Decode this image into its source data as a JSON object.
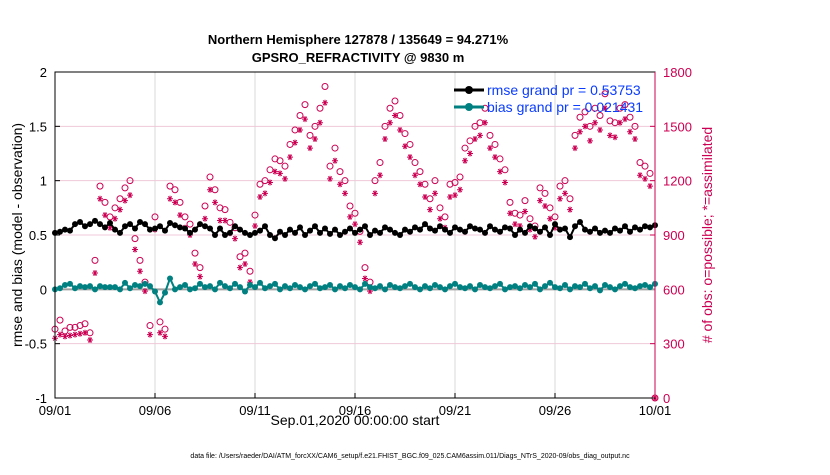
{
  "chart_data": {
    "type": "line",
    "title": "Northern Hemisphere 127878 / 135649 = 94.271%",
    "subtitle": "GPSRO_REFRACTIVITY @ 9830 m",
    "xlabel": "Sep.01,2020 00:00:00 start",
    "ylabel": "rmse and bias (model - observation)",
    "ylabel_right": "# of obs: o=possible; *=assimilated",
    "xlim_days": [
      0,
      30
    ],
    "ylim": [
      -1,
      2
    ],
    "ylim_right": [
      0,
      1800
    ],
    "x_ticks": [
      {
        "day": 0,
        "label": "09/01"
      },
      {
        "day": 5,
        "label": "09/06"
      },
      {
        "day": 10,
        "label": "09/11"
      },
      {
        "day": 15,
        "label": "09/16"
      },
      {
        "day": 20,
        "label": "09/21"
      },
      {
        "day": 25,
        "label": "09/26"
      },
      {
        "day": 30,
        "label": "10/01"
      }
    ],
    "y_ticks": [
      "-1",
      "-0.5",
      "0",
      "0.5",
      "1",
      "1.5",
      "2"
    ],
    "y_ticks_right": [
      "0",
      "300",
      "600",
      "900",
      "1200",
      "1500",
      "1800"
    ],
    "grid": true,
    "legend_position": "top-right",
    "time_step_days": 0.25,
    "colors": {
      "rmse": "#000000",
      "bias": "#008080",
      "obs": "#cc0052",
      "legend_text": "#0a3cff",
      "zero_line": "#a0a0a0"
    },
    "series": [
      {
        "name": "rmse grand pr = 0.53753",
        "key": "rmse",
        "values": [
          0.52,
          0.53,
          0.55,
          0.54,
          0.6,
          0.62,
          0.58,
          0.6,
          0.63,
          0.6,
          0.57,
          0.61,
          0.55,
          0.52,
          0.58,
          0.6,
          0.56,
          0.62,
          0.6,
          0.55,
          0.56,
          0.58,
          0.54,
          0.61,
          0.59,
          0.57,
          0.56,
          0.52,
          0.55,
          0.6,
          0.58,
          0.56,
          0.5,
          0.56,
          0.5,
          0.52,
          0.58,
          0.55,
          0.52,
          0.5,
          0.52,
          0.54,
          0.58,
          0.5,
          0.47,
          0.53,
          0.5,
          0.55,
          0.52,
          0.57,
          0.5,
          0.54,
          0.58,
          0.52,
          0.56,
          0.51,
          0.55,
          0.5,
          0.53,
          0.56,
          0.52,
          0.55,
          0.58,
          0.5,
          0.54,
          0.52,
          0.57,
          0.55,
          0.52,
          0.5,
          0.55,
          0.53,
          0.57,
          0.55,
          0.6,
          0.56,
          0.54,
          0.58,
          0.55,
          0.52,
          0.57,
          0.55,
          0.53,
          0.58,
          0.56,
          0.55,
          0.52,
          0.58,
          0.55,
          0.53,
          0.57,
          0.56,
          0.5,
          0.55,
          0.52,
          0.58,
          0.56,
          0.53,
          0.57,
          0.5,
          0.6,
          0.55,
          0.56,
          0.48,
          0.58,
          0.62,
          0.55,
          0.53,
          0.56,
          0.52,
          0.54,
          0.52,
          0.56,
          0.54,
          0.58,
          0.53,
          0.57,
          0.55,
          0.58,
          0.57,
          0.59
        ]
      },
      {
        "name": "bias grand pr = 0.021431",
        "key": "bias",
        "values": [
          0.0,
          0.01,
          0.04,
          0.05,
          0.01,
          0.03,
          0.02,
          0.03,
          0.0,
          0.03,
          0.02,
          0.02,
          0.02,
          0.0,
          0.06,
          0.01,
          0.04,
          0.03,
          0.05,
          0.03,
          -0.02,
          -0.12,
          -0.03,
          0.1,
          0.0,
          0.02,
          0.04,
          0.0,
          0.01,
          0.05,
          0.02,
          0.03,
          0.0,
          0.06,
          0.03,
          0.01,
          0.05,
          0.02,
          -0.02,
          0.04,
          0.02,
          0.06,
          0.01,
          0.03,
          0.05,
          0.0,
          0.03,
          0.01,
          0.04,
          0.02,
          0.0,
          0.03,
          0.05,
          0.01,
          0.02,
          0.04,
          0.0,
          0.03,
          0.01,
          0.04,
          0.02,
          0.0,
          0.05,
          0.02,
          0.01,
          0.03,
          0.0,
          0.04,
          0.02,
          0.01,
          0.03,
          0.05,
          0.02,
          0.0,
          0.03,
          0.01,
          0.04,
          0.02,
          0.0,
          0.03,
          0.05,
          0.02,
          0.01,
          0.03,
          0.0,
          0.04,
          0.02,
          0.01,
          0.03,
          0.05,
          0.0,
          0.02,
          0.03,
          0.01,
          0.04,
          0.02,
          0.05,
          0.0,
          0.03,
          0.06,
          0.02,
          0.01,
          0.04,
          0.0,
          0.03,
          0.02,
          0.05,
          0.01,
          0.03,
          -0.01,
          0.04,
          0.02,
          0.0,
          0.03,
          0.05,
          0.02,
          0.01,
          0.03,
          0.04,
          0.02,
          0.05
        ]
      },
      {
        "name": "possible",
        "key": "possible",
        "values": [
          380,
          430,
          370,
          390,
          390,
          400,
          410,
          360,
          760,
          1170,
          1080,
          1000,
          1050,
          1100,
          1160,
          1200,
          880,
          760,
          640,
          400,
          1000,
          420,
          380,
          1170,
          1150,
          1080,
          1000,
          960,
          800,
          720,
          1060,
          1220,
          1150,
          1050,
          1040,
          970,
          940,
          780,
          800,
          700,
          1010,
          1180,
          1200,
          1260,
          1320,
          1310,
          1280,
          1400,
          1480,
          1560,
          1620,
          1450,
          1500,
          1600,
          1720,
          1280,
          1380,
          1250,
          1200,
          1060,
          1020,
          920,
          720,
          640,
          1200,
          1300,
          1500,
          1600,
          1640,
          1560,
          1460,
          1400,
          1300,
          1250,
          1180,
          1100,
          1200,
          1050,
          1000,
          1180,
          1190,
          1220,
          1380,
          1420,
          1500,
          1520,
          1600,
          1450,
          1400,
          1320,
          1260,
          1080,
          1020,
          1010,
          1090,
          990,
          950,
          1160,
          1130,
          1050,
          1000,
          1170,
          1200,
          1100,
          1450,
          1550,
          1580,
          1500,
          1600,
          1560,
          1680,
          1530,
          1520,
          1600,
          1620,
          1550,
          1500,
          1300,
          1280,
          1240,
          0
        ]
      },
      {
        "name": "assimilated",
        "key": "assimilated",
        "values": [
          330,
          350,
          340,
          345,
          350,
          355,
          360,
          320,
          690,
          1100,
          1010,
          940,
          990,
          1040,
          1090,
          1120,
          820,
          700,
          590,
          350,
          930,
          360,
          340,
          1100,
          1080,
          1010,
          940,
          900,
          740,
          670,
          990,
          1150,
          1080,
          980,
          980,
          910,
          880,
          720,
          740,
          640,
          950,
          1110,
          1130,
          1190,
          1250,
          1240,
          1210,
          1330,
          1410,
          1480,
          1540,
          1380,
          1430,
          1520,
          1630,
          1210,
          1310,
          1180,
          1130,
          1000,
          960,
          860,
          660,
          590,
          1130,
          1230,
          1430,
          1520,
          1560,
          1480,
          1390,
          1330,
          1230,
          1180,
          1110,
          1040,
          1130,
          990,
          940,
          1110,
          1120,
          1150,
          1310,
          1350,
          1430,
          1450,
          1520,
          1380,
          1330,
          1250,
          1190,
          1020,
          960,
          950,
          1030,
          930,
          890,
          1090,
          1060,
          990,
          940,
          1100,
          1130,
          1040,
          1380,
          1470,
          1500,
          1420,
          1520,
          1480,
          1600,
          1450,
          1440,
          1520,
          1540,
          1470,
          1430,
          1230,
          1210,
          1170,
          0
        ]
      }
    ],
    "footer": "data file: /Users/raeder/DAI/ATM_forcXX/CAM6_setup/f.e21.FHIST_BGC.f09_025.CAM6assim.011/Diags_NTrS_2020-09/obs_diag_output.nc"
  }
}
